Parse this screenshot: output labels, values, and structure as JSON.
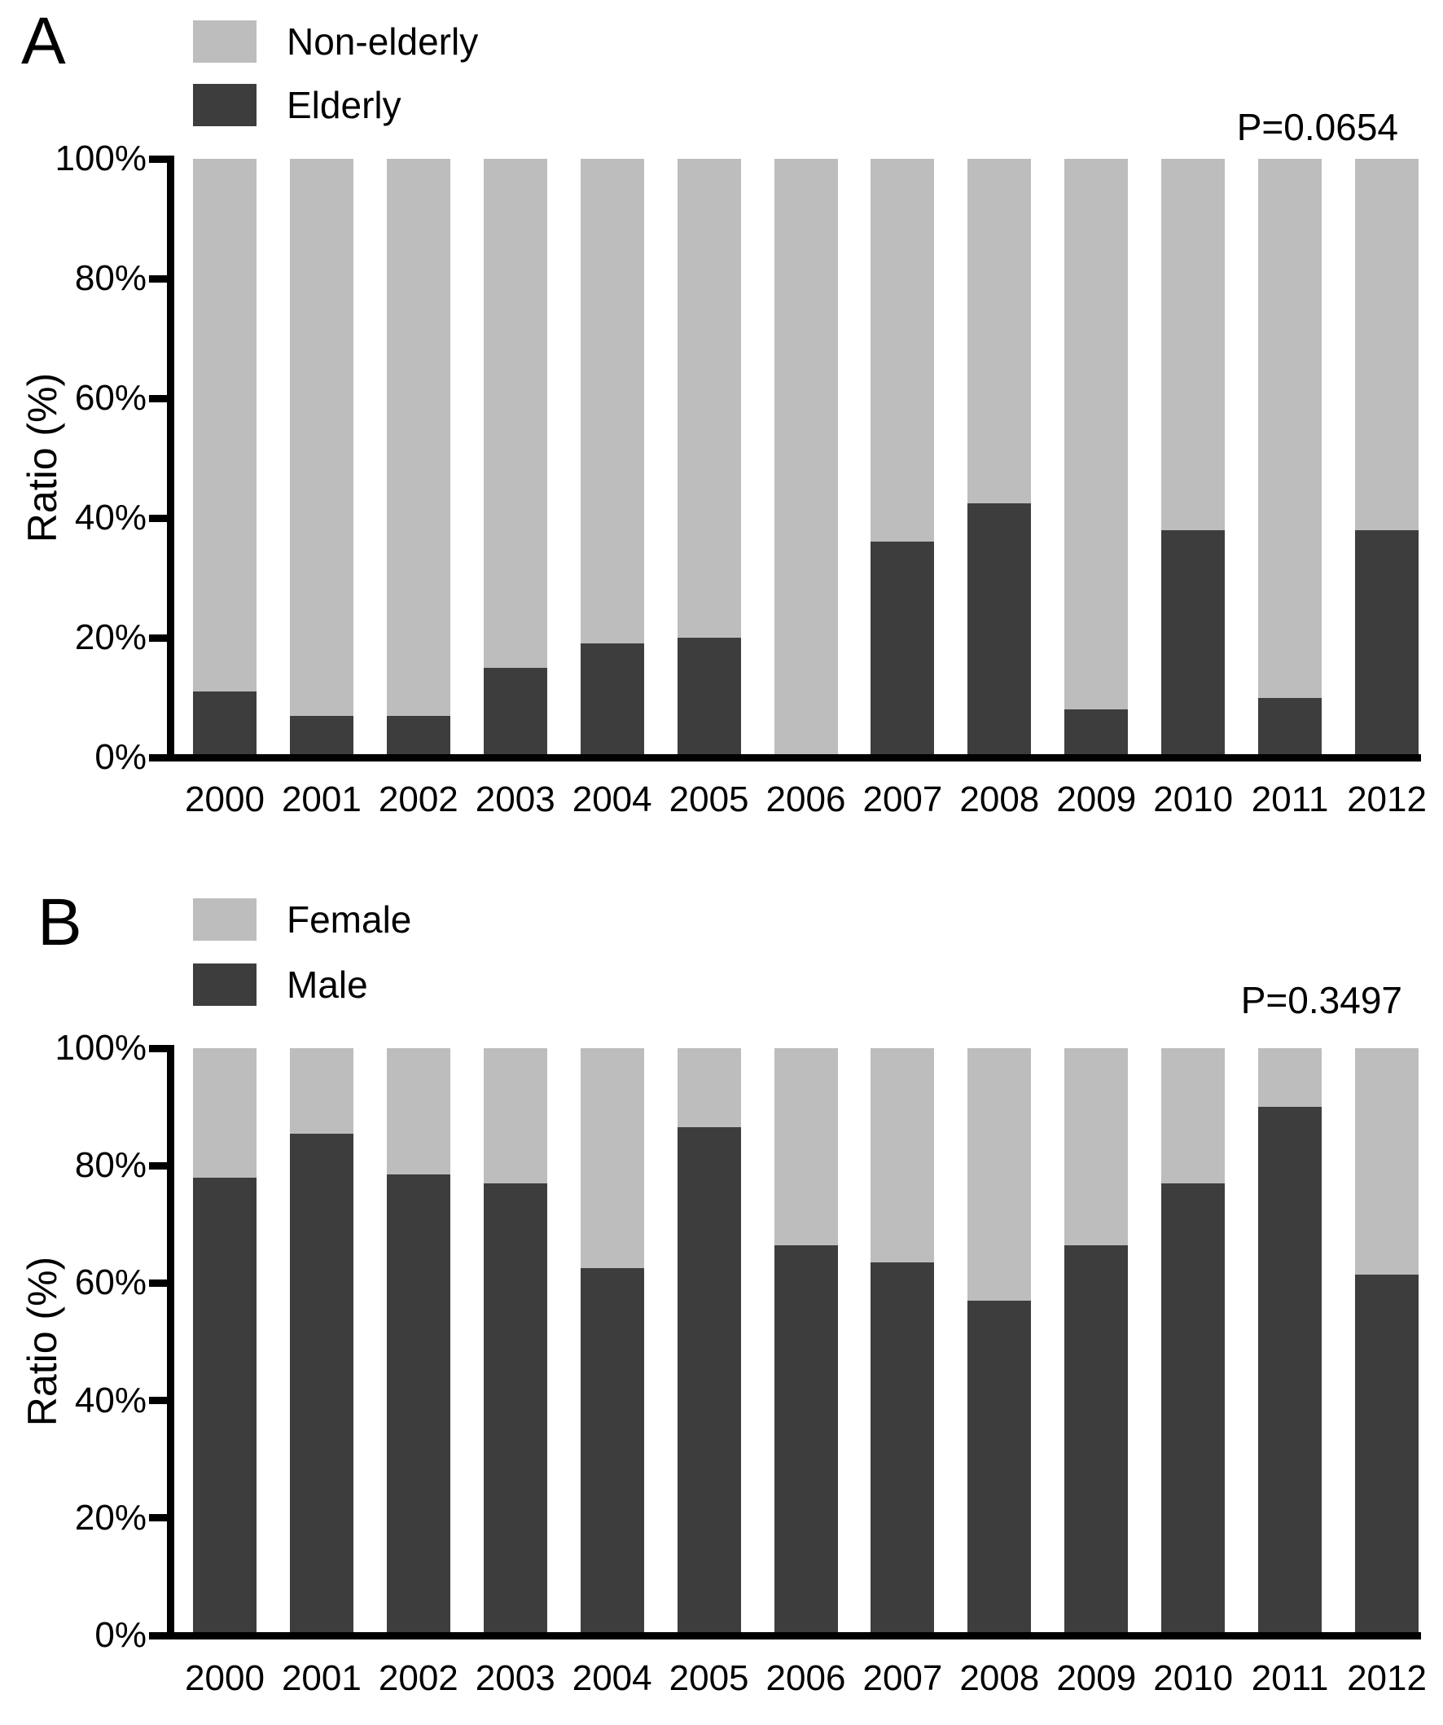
{
  "figure": {
    "background": "#ffffff",
    "text_color": "#000000",
    "axis_color": "#000000"
  },
  "chart_data": [
    {
      "type": "bar",
      "stacked": true,
      "panel_label": "A",
      "annotation": "P=0.0654",
      "ylabel": "Ratio (%)",
      "ylim": [
        0,
        100
      ],
      "ytick_step": 20,
      "ytick_labels": [
        "0%",
        "20%",
        "40%",
        "60%",
        "80%",
        "100%"
      ],
      "grid": false,
      "legend_position": "top-left",
      "categories": [
        "2000",
        "2001",
        "2002",
        "2003",
        "2004",
        "2005",
        "2006",
        "2007",
        "2008",
        "2009",
        "2010",
        "2011",
        "2012"
      ],
      "series": [
        {
          "name": "Non-elderly",
          "color": "#bdbdbd",
          "values": [
            89,
            93,
            93,
            85,
            81,
            80,
            100,
            64,
            57.5,
            92,
            62,
            90,
            62
          ]
        },
        {
          "name": "Elderly",
          "color": "#3d3d3d",
          "values": [
            11,
            7,
            7,
            15,
            19,
            20,
            0,
            36,
            42.5,
            8,
            38,
            10,
            38
          ]
        }
      ]
    },
    {
      "type": "bar",
      "stacked": true,
      "panel_label": "B",
      "annotation": "P=0.3497",
      "ylabel": "Ratio (%)",
      "ylim": [
        0,
        100
      ],
      "ytick_step": 20,
      "ytick_labels": [
        "0%",
        "20%",
        "40%",
        "60%",
        "80%",
        "100%"
      ],
      "grid": false,
      "legend_position": "top-left",
      "categories": [
        "2000",
        "2001",
        "2002",
        "2003",
        "2004",
        "2005",
        "2006",
        "2007",
        "2008",
        "2009",
        "2010",
        "2011",
        "2012"
      ],
      "series": [
        {
          "name": "Female",
          "color": "#bdbdbd",
          "values": [
            22,
            14.5,
            21.5,
            23,
            37.5,
            13.5,
            33.5,
            36.5,
            43,
            33.5,
            23,
            10,
            38.5
          ]
        },
        {
          "name": "Male",
          "color": "#3d3d3d",
          "values": [
            78,
            85.5,
            78.5,
            77,
            62.5,
            86.5,
            66.5,
            63.5,
            57,
            66.5,
            77,
            90,
            61.5
          ]
        }
      ]
    }
  ]
}
